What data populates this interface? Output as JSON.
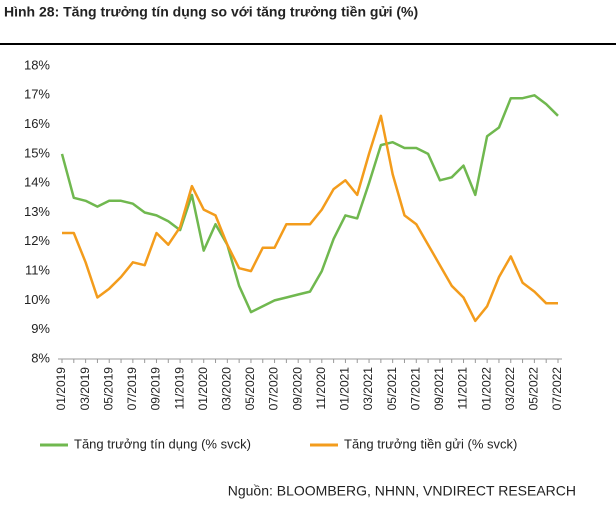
{
  "chart_data": {
    "type": "line",
    "title": "Hình 28: Tăng trưởng tín dụng so với tăng trưởng tiền gửi (%)",
    "source": "Nguồn: BLOOMBERG, NHNN, VNDIRECT RESEARCH",
    "categories": [
      "01/2019",
      null,
      "03/2019",
      null,
      "05/2019",
      null,
      "07/2019",
      null,
      "09/2019",
      null,
      "11/2019",
      null,
      "01/2020",
      null,
      "03/2020",
      null,
      "05/2020",
      null,
      "07/2020",
      null,
      "09/2020",
      null,
      "11/2020",
      null,
      "01/2021",
      null,
      "03/2021",
      null,
      "05/2021",
      null,
      "07/2021",
      null,
      "09/2021",
      null,
      "11/2021",
      null,
      "01/2022",
      null,
      "03/2022",
      null,
      "05/2022",
      null,
      "07/2022"
    ],
    "series": [
      {
        "name": "Tăng trưởng tín dụng (% svck)",
        "color": "#70b84f",
        "values": [
          15.0,
          13.5,
          13.4,
          13.2,
          13.4,
          13.4,
          13.3,
          13.0,
          12.9,
          12.7,
          12.4,
          13.6,
          11.7,
          12.6,
          11.9,
          10.5,
          9.6,
          9.8,
          10.0,
          10.1,
          10.2,
          10.3,
          11.0,
          12.1,
          12.9,
          12.8,
          14.0,
          15.3,
          15.4,
          15.2,
          15.2,
          15.0,
          14.1,
          14.2,
          14.6,
          13.6,
          15.6,
          15.9,
          16.9,
          16.9,
          17.0,
          16.7,
          16.3
        ]
      },
      {
        "name": "Tăng trưởng tiền gửi (% svck)",
        "color": "#f39c1c",
        "values": [
          12.3,
          12.3,
          11.3,
          10.1,
          10.4,
          10.8,
          11.3,
          11.2,
          12.3,
          11.9,
          12.5,
          13.9,
          13.1,
          12.9,
          11.9,
          11.1,
          11.0,
          11.8,
          11.8,
          12.6,
          12.6,
          12.6,
          13.1,
          13.8,
          14.1,
          13.6,
          15.0,
          16.3,
          14.3,
          12.9,
          12.6,
          11.9,
          11.2,
          10.5,
          10.1,
          9.3,
          9.8,
          10.8,
          11.5,
          10.6,
          10.3,
          9.9,
          9.9
        ]
      }
    ],
    "ylim": [
      8,
      18
    ],
    "yticks": [
      {
        "value": 8,
        "label": "8%"
      },
      {
        "value": 9,
        "label": "9%"
      },
      {
        "value": 10,
        "label": "10%"
      },
      {
        "value": 11,
        "label": "11%"
      },
      {
        "value": 12,
        "label": "12%"
      },
      {
        "value": 13,
        "label": "13%"
      },
      {
        "value": 14,
        "label": "14%"
      },
      {
        "value": 15,
        "label": "15%"
      },
      {
        "value": 16,
        "label": "16%"
      },
      {
        "value": 17,
        "label": "17%"
      },
      {
        "value": 18,
        "label": "18%"
      }
    ],
    "grid": false
  }
}
